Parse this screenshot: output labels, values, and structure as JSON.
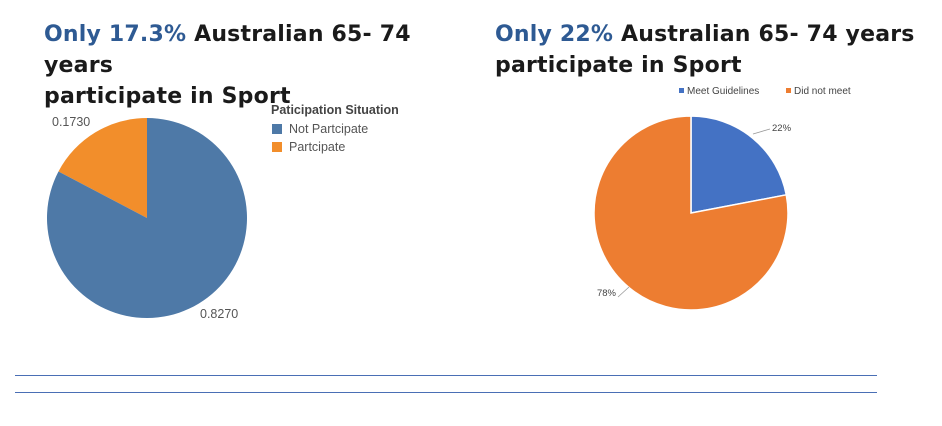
{
  "headings": [
    {
      "highlight": "Only 17.3%",
      "line1_rest": " Australian 65- 74 years",
      "line2": "participate in Sport"
    },
    {
      "highlight": "Only 22%",
      "line1_rest": " Australian 65- 74 years",
      "line2": "participate in Sport"
    }
  ],
  "colors": {
    "heading_highlight": "#2e5a93",
    "left_not": "#4e79a7",
    "left_part": "#f28e2b",
    "right_meet": "#4472c4",
    "right_not": "#ed7d31",
    "rule": "#4a6fb5"
  },
  "chart_data": [
    {
      "type": "pie",
      "legend_title": "Paticipation Situation",
      "legend_placement": "top-right",
      "slices": [
        {
          "name": "Partcipate",
          "value": 0.173,
          "label": "0.1730",
          "color": "#f28e2b"
        },
        {
          "name": "Not Partcipate",
          "value": 0.827,
          "label": "0.8270",
          "color": "#4e79a7"
        }
      ],
      "legend_order": [
        "Not Partcipate",
        "Partcipate"
      ]
    },
    {
      "type": "pie",
      "legend_placement": "top",
      "slices": [
        {
          "name": "Meet Guidelines",
          "value": 22,
          "label": "22%",
          "color": "#4472c4"
        },
        {
          "name": "Did not meet",
          "value": 78,
          "label": "78%",
          "color": "#ed7d31"
        }
      ],
      "legend_order": [
        "Meet Guidelines",
        "Did not meet"
      ]
    }
  ]
}
